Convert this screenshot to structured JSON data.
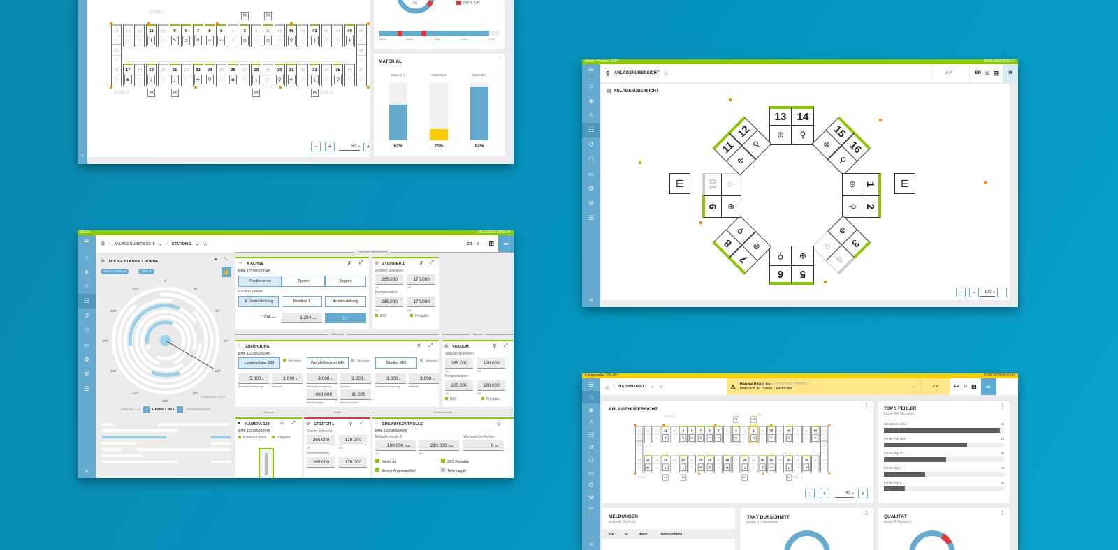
{
  "colors": {
    "accent": "#64abcf",
    "green": "#8cc800",
    "warning": "#ffcc00",
    "error": "#e03a3a",
    "marker": "#ff8c00"
  },
  "sidebar_icons": [
    "menu-icon",
    "home-icon",
    "layers-icon",
    "warning-icon",
    "sliders-icon",
    "history-icon",
    "network-icon",
    "monitor-icon",
    "gear-icon",
    "wrench-icon",
    "tune-icon"
  ],
  "grid": {
    "zones": [
      "ZONE 1",
      "ZONE 2",
      "ZONE 3"
    ],
    "top": [
      {
        "n": "14"
      },
      {
        "n": "13"
      },
      {
        "n": "12"
      },
      {
        "n": "11",
        "on": true,
        "icon": "crosshair"
      },
      {
        "n": "10"
      },
      {
        "n": "9",
        "on": true,
        "icon": "pen"
      },
      {
        "n": "8",
        "on": true,
        "icon": "gripper"
      },
      {
        "n": "7",
        "on": true,
        "icon": "search"
      },
      {
        "n": "6",
        "on": true,
        "icon": "scissors"
      },
      {
        "n": "5",
        "on": true,
        "icon": "scissors"
      },
      {
        "n": "4"
      },
      {
        "n": "3",
        "on": true,
        "icon": "target"
      },
      {
        "n": "2"
      },
      {
        "n": "1",
        "on": true,
        "icon": "target"
      },
      {
        "n": "46"
      },
      {
        "n": "45",
        "on": true,
        "icon": "search"
      },
      {
        "n": "44"
      },
      {
        "n": "43",
        "on": true,
        "icon": "crosshair"
      },
      {
        "n": "42"
      },
      {
        "n": "41"
      },
      {
        "n": "40",
        "on": true,
        "icon": "crosshair"
      },
      {
        "n": "39"
      }
    ],
    "left": "15",
    "right": "38",
    "bottom": [
      {
        "n": "16"
      },
      {
        "n": "17",
        "on": true,
        "icon": "camera"
      },
      {
        "n": "18"
      },
      {
        "n": "19",
        "on": true,
        "icon": "down"
      },
      {
        "n": "20"
      },
      {
        "n": "21",
        "on": true,
        "icon": "down"
      },
      {
        "n": "22"
      },
      {
        "n": "23",
        "on": true,
        "icon": "crosshair"
      },
      {
        "n": "24",
        "on": true,
        "icon": "search"
      },
      {
        "n": "25"
      },
      {
        "n": "26",
        "on": true,
        "icon": "camera"
      },
      {
        "n": "27"
      },
      {
        "n": "28",
        "on": true,
        "icon": "down"
      },
      {
        "n": "29"
      },
      {
        "n": "30",
        "on": true,
        "icon": "search"
      },
      {
        "n": "31",
        "on": true,
        "icon": "crosshair"
      },
      {
        "n": "32"
      },
      {
        "n": "33",
        "on": true,
        "icon": "down"
      },
      {
        "n": "34"
      },
      {
        "n": "35",
        "on": true,
        "icon": "search"
      },
      {
        "n": "36"
      },
      {
        "n": "37"
      }
    ]
  },
  "w1": {
    "zoom_value": "50",
    "zoom_unit": "%",
    "donut_unit": "%",
    "legend_nok": "Nicht OK",
    "timeline_ticks": [
      "08:00",
      "09:00",
      "10:00",
      "11:00",
      "12:00"
    ],
    "material_title": "MATERIAL",
    "materials": [
      {
        "label": "Material 1",
        "value": 62,
        "text": "62%",
        "color": "#64abcf"
      },
      {
        "label": "Material 2",
        "value": 20,
        "text": "20%",
        "color": "#ffcc00"
      },
      {
        "label": "Material 3",
        "value": 94,
        "text": "94%",
        "color": "#64abcf"
      }
    ]
  },
  "w2": {
    "status": "Master-Position: 120°",
    "datetime": "13.05.2023 09:52:47",
    "breadcrumb": "ANLAGENÜBERSICHT",
    "lang": "ER",
    "card_title": "ANLAGENÜBERSICHT",
    "zoom_value": "100",
    "zoom_unit": "%",
    "pairs": [
      {
        "a": "13",
        "b": "14",
        "rot": 0
      },
      {
        "a": "15",
        "b": "16",
        "rot": 45
      },
      {
        "a": "1",
        "b": "2",
        "rot": 90
      },
      {
        "a": "3",
        "b": "4",
        "rot": 135,
        "b_off": true
      },
      {
        "a": "5",
        "b": "6",
        "rot": 180
      },
      {
        "a": "7",
        "b": "8",
        "rot": 225
      },
      {
        "a": "9",
        "b": "10",
        "rot": 270,
        "b_off": true
      },
      {
        "a": "11",
        "b": "12",
        "rot": 315
      }
    ]
  },
  "w3": {
    "status": "01234",
    "datetime": "07.12.2022 09:52:47",
    "breadcrumb": [
      "ANLAGENÜBERSICHT",
      "STATION 1"
    ],
    "lang": "ER",
    "left": {
      "title": "NOCKE STATION 1 VORNE",
      "chips": [
        "Station Vorne",
        "Aktiv"
      ],
      "angles": [
        "0°",
        "30°",
        "60°",
        "90°",
        "120°",
        "150°",
        "180°",
        "210°",
        "240°",
        "270°",
        "300°",
        "330°"
      ],
      "shaft": "Königswelle: 120,45°",
      "prev": "Kamera 123",
      "current": "Greifer 1 M51",
      "next": "Einlaufkontrolle"
    },
    "sections": {
      "pinned": "Gepinnte Komponenten",
      "feed": "Zuführung",
      "vacuum": "Vakuum",
      "camera": "Kamera",
      "gripper": "Greifer",
      "inlet": "Einlaufkontrolle"
    },
    "xaxis": {
      "title": "X ACHSE",
      "bmk": "BMK 123385932945",
      "tabs": [
        "Positionieren",
        "Tippen",
        "Joggen"
      ],
      "choose": "Position wählen",
      "positions": [
        "Grundstellung",
        "Position 1",
        "Arbeitsstellung"
      ],
      "current": "1.234",
      "target": "1.234",
      "unit": "mm"
    },
    "cyl": {
      "title": "ZYLINDER 1",
      "activate": "Zylinder aktivieren",
      "on": "265.000",
      "off": "170.000",
      "comp": "Kompensation",
      "c_on": "265.000",
      "c_off": "170.000",
      "on_l": "On",
      "off_l": "Off",
      "s1": "B82",
      "s2": "Freigabe"
    },
    "feed": {
      "title": "ZUFÜHRUNG",
      "bmk": "BMK 123385932945",
      "buttons": [
        "Linearschine EIN",
        "Wendelförderer EIN",
        "Bunker EIN"
      ],
      "hint": "Teile fördern",
      "vals": [
        [
          "5.000",
          "3.000"
        ],
        [
          "3.000",
          "3.000"
        ],
        [
          "3.000",
          "3.000"
        ]
      ],
      "unit": "s",
      "l1": "Einschalt-Verzögerung",
      "l2": "Nachlauf",
      "extra": [
        "600.000",
        "10.000"
      ],
      "extra_l": [
        "Blasluft Vorlauf",
        "Blasluft Nachlauf"
      ]
    },
    "vac": {
      "title": "VAKUUM",
      "activate": "Vakuum aktivieren",
      "on": "265.000",
      "off": "170.000",
      "comp": "Kompensation",
      "c_on": "265.000",
      "c_off": "170.000",
      "on_l": "On",
      "off_l": "Off",
      "s1": "B82",
      "s2": "Freigabe"
    },
    "cam": {
      "title": "KAMERA 123",
      "bmk": "BMK 123385932945",
      "s1": "Kamera Online",
      "s2": "Freigabe"
    },
    "grip": {
      "title": "GREIFER 1",
      "activate": "Greifer aktivieren",
      "on": "265.000",
      "off": "170.000",
      "comp": "Kompensation",
      "c_on": "265.000",
      "c_off": "170.000",
      "on_l": "On",
      "off_l": "Off"
    },
    "inlet": {
      "title": "EINLAUFKONTROLLE",
      "bmk": "BMK 123385932945",
      "sub": "Einlaufkontrolle 1",
      "wait": "Wartezeit bis Fehler",
      "on": "190.000",
      "off": "210.000",
      "unit": "Grad",
      "wait_v": "0",
      "wait_u": "ms",
      "on_l": "On",
      "off_l": "Off",
      "s1": "Nocke da",
      "s2": "SPS Freigabe",
      "s3": "Sensor Angewandheit",
      "s4": "Teilemangel"
    }
  },
  "w4": {
    "status": "Königswelle: 120,45°",
    "datetime": "13.05.2023 09:52:47",
    "breadcrumb": "DASHBOARD 1",
    "lang": "ER",
    "alert": {
      "title": "Material B bald leer",
      "time": "12.03.2023 12:02:02",
      "text": "Material B an Station 1 nachfüllen"
    },
    "overview_title": "ANLAGENÜBERSICHT",
    "zoom_value": "40",
    "zoom_unit": "%",
    "top5": {
      "title": "TOP 5 FEHLER",
      "sub": "letzte 24 Stunden",
      "items": [
        {
          "label": "Schutztüre offen",
          "value": 56
        },
        {
          "label": "Fehler-Typ DEF",
          "value": 40
        },
        {
          "label": "Fehler-Typ XY",
          "value": 30
        },
        {
          "label": "Fehler-Typ A",
          "value": 20
        },
        {
          "label": "Fehler-Typ Z",
          "value": 10
        }
      ]
    },
    "messages": {
      "title": "MELDUNGEN",
      "sub": "aktuelle Schicht",
      "cols": [
        "Typ ↓",
        "ID",
        "Name",
        "Beschreibung"
      ]
    },
    "takt": {
      "title": "TAKT DURSCHNITT",
      "sub": "letzte 10 Minunten"
    },
    "quality": {
      "title": "QUALITÄT",
      "sub": "letzte 5 Stunden"
    }
  }
}
